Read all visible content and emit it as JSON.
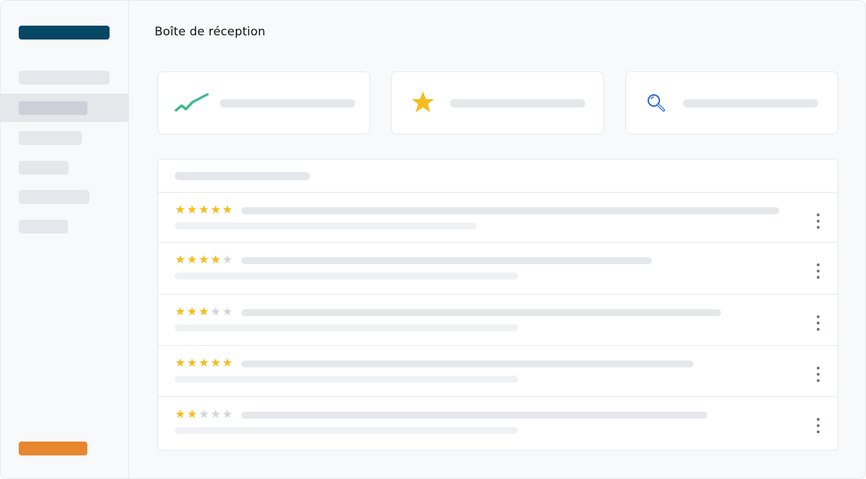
{
  "header": {
    "title": "Boîte de réception"
  },
  "colors": {
    "brand": "#064766",
    "accent": "#e8862f",
    "star_on": "#f5bd1c",
    "star_off": "#d1d5db",
    "trend": "#3dbb8d",
    "search": "#1f63d6"
  },
  "cards": [
    {
      "icon": "trend-up-icon"
    },
    {
      "icon": "star-icon"
    },
    {
      "icon": "search-icon"
    }
  ],
  "reviews": [
    {
      "rating": 5
    },
    {
      "rating": 4
    },
    {
      "rating": 3
    },
    {
      "rating": 5
    },
    {
      "rating": 2
    }
  ]
}
